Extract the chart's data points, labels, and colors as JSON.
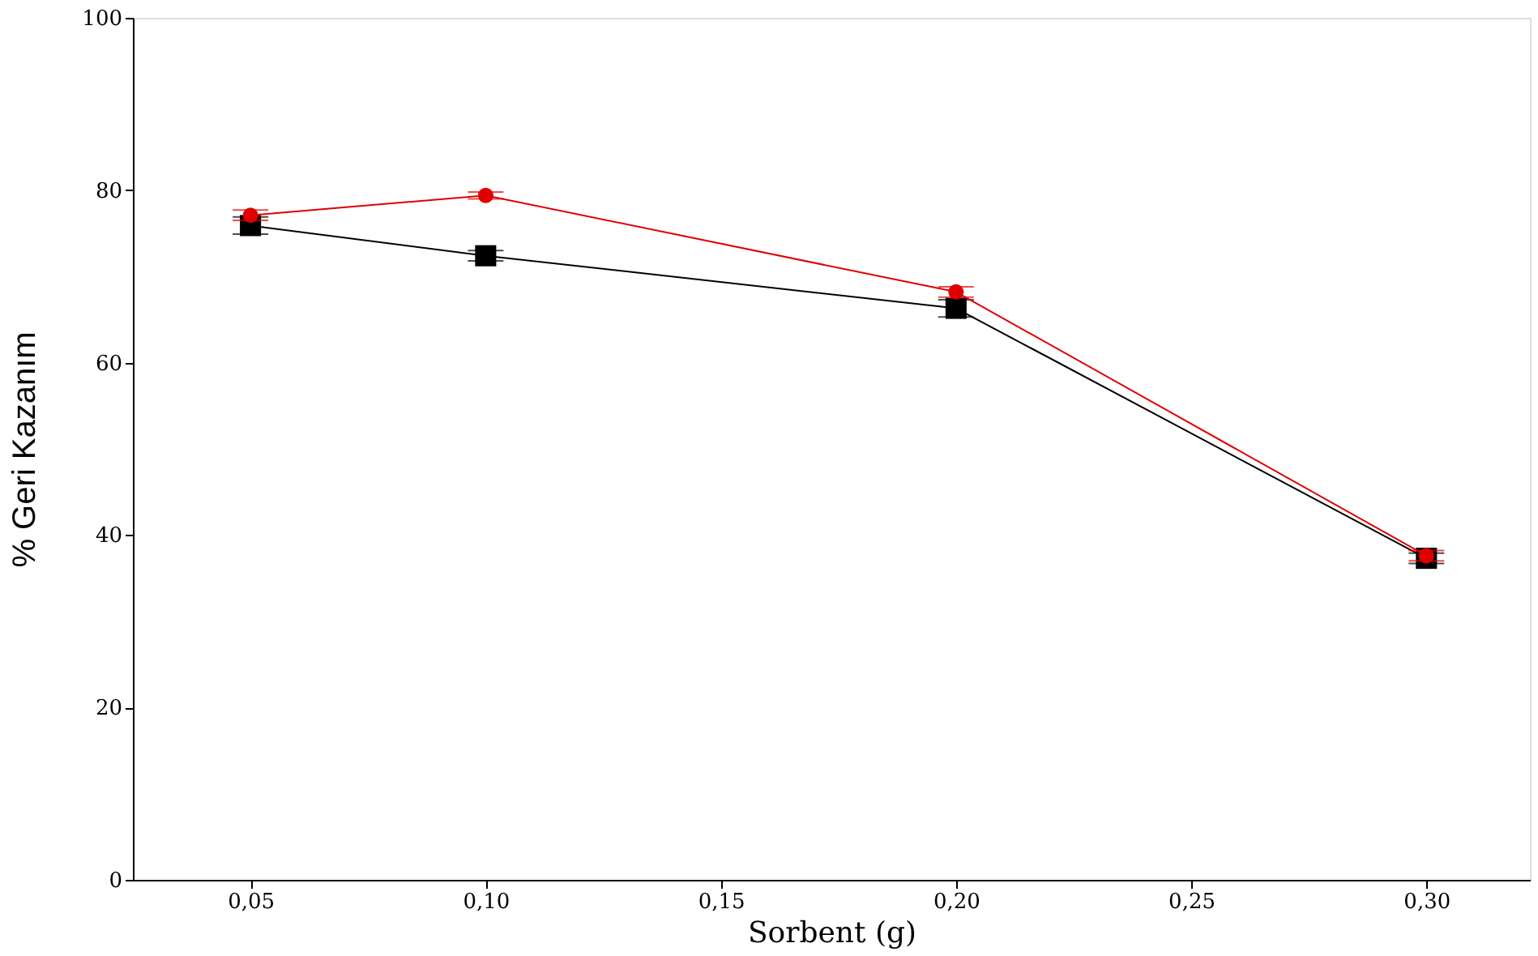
{
  "chart_data": {
    "type": "line",
    "xlabel": "Sorbent (g)",
    "ylabel": "% Geri Kazanım",
    "x": [
      0.05,
      0.1,
      0.2,
      0.3
    ],
    "series": [
      {
        "color": "#000000",
        "marker": "square",
        "values": [
          75.9,
          72.4,
          66.3,
          37.3
        ],
        "errors": [
          1,
          0.6,
          1,
          0.6
        ]
      },
      {
        "color": "#e00000",
        "marker": "circle",
        "values": [
          77.1,
          79.4,
          68.2,
          37.6
        ],
        "errors": [
          0.6,
          0.4,
          0.6,
          0.6
        ]
      }
    ],
    "xlim": [
      0.025,
      0.322
    ],
    "xticks": [
      {
        "value": 0.05,
        "label": "0,05"
      },
      {
        "value": 0.1,
        "label": "0,10"
      },
      {
        "value": 0.15,
        "label": "0,15"
      },
      {
        "value": 0.2,
        "label": "0,20"
      },
      {
        "value": 0.25,
        "label": "0,25"
      },
      {
        "value": 0.3,
        "label": "0,30"
      }
    ],
    "ylim": [
      0,
      100
    ],
    "yticks": [
      0,
      20,
      40,
      60,
      80,
      100
    ],
    "grid": false
  }
}
